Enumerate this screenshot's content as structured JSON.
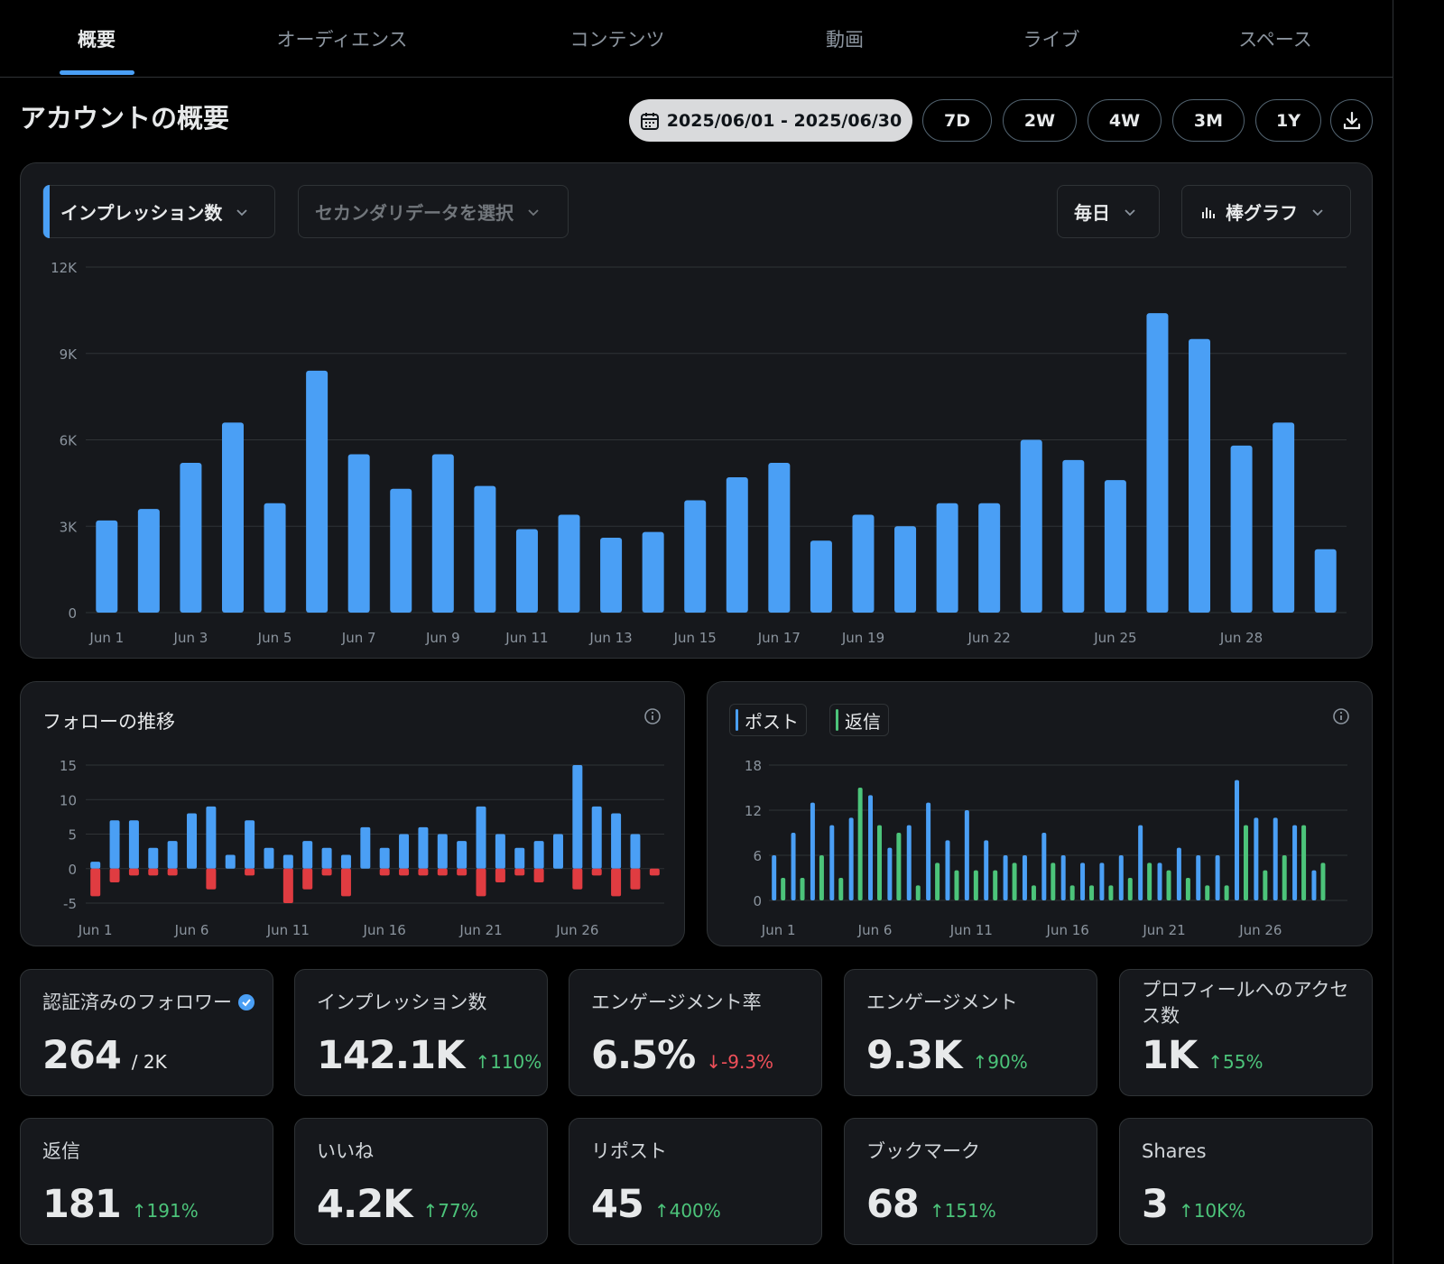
{
  "tabs": [
    {
      "label": "概要",
      "active": true
    },
    {
      "label": "オーディエンス",
      "active": false
    },
    {
      "label": "コンテンツ",
      "active": false
    },
    {
      "label": "動画",
      "active": false
    },
    {
      "label": "ライブ",
      "active": false
    },
    {
      "label": "スペース",
      "active": false
    }
  ],
  "header": {
    "title": "アカウントの概要",
    "date_range": "2025/06/01 - 2025/06/30",
    "ranges": [
      "7D",
      "2W",
      "4W",
      "3M",
      "1Y"
    ]
  },
  "main_chart": {
    "primary_metric": "インプレッション数",
    "secondary_placeholder": "セカンダリデータを選択",
    "interval": "毎日",
    "chart_type_label": "棒グラフ"
  },
  "follow_panel": {
    "title": "フォローの推移"
  },
  "post_panel": {
    "legend": [
      "ポスト",
      "返信"
    ]
  },
  "colors": {
    "blue": "#4a9ff5",
    "red": "#e03c41",
    "green": "#4cc47a",
    "panel": "#16181c",
    "accent": "#4a9ff5"
  },
  "chart_data": [
    {
      "type": "bar",
      "x": [
        "Jun 1",
        "Jun 2",
        "Jun 3",
        "Jun 4",
        "Jun 5",
        "Jun 6",
        "Jun 7",
        "Jun 8",
        "Jun 9",
        "Jun 10",
        "Jun 11",
        "Jun 12",
        "Jun 13",
        "Jun 14",
        "Jun 15",
        "Jun 16",
        "Jun 17",
        "Jun 18",
        "Jun 19",
        "Jun 20",
        "Jun 21",
        "Jun 22",
        "Jun 23",
        "Jun 24",
        "Jun 25",
        "Jun 26",
        "Jun 27",
        "Jun 28",
        "Jun 29",
        "Jun 30"
      ],
      "tick_labels": [
        "Jun 1",
        "Jun 3",
        "Jun 5",
        "Jun 7",
        "Jun 9",
        "Jun 11",
        "Jun 13",
        "Jun 15",
        "Jun 17",
        "Jun 19",
        "Jun 22",
        "Jun 25",
        "Jun 28"
      ],
      "series": [
        {
          "values": [
            3200,
            3600,
            5200,
            6600,
            3800,
            8400,
            5500,
            4300,
            5500,
            4400,
            2900,
            3400,
            2600,
            2800,
            3900,
            4700,
            5200,
            2500,
            3400,
            3000,
            3800,
            3800,
            6000,
            5300,
            4600,
            10400,
            9500,
            5800,
            6600,
            2200
          ]
        }
      ],
      "y_ticks": [
        "0",
        "3K",
        "6K",
        "9K",
        "12K"
      ],
      "ylim": [
        0,
        12000
      ],
      "grid": true
    },
    {
      "type": "bar",
      "x": [
        "Jun 1",
        "Jun 2",
        "Jun 3",
        "Jun 4",
        "Jun 5",
        "Jun 6",
        "Jun 7",
        "Jun 8",
        "Jun 9",
        "Jun 10",
        "Jun 11",
        "Jun 12",
        "Jun 13",
        "Jun 14",
        "Jun 15",
        "Jun 16",
        "Jun 17",
        "Jun 18",
        "Jun 19",
        "Jun 20",
        "Jun 21",
        "Jun 22",
        "Jun 23",
        "Jun 24",
        "Jun 25",
        "Jun 26",
        "Jun 27",
        "Jun 28",
        "Jun 29",
        "Jun 30"
      ],
      "tick_labels": [
        "Jun 1",
        "Jun 6",
        "Jun 11",
        "Jun 16",
        "Jun 21",
        "Jun 26"
      ],
      "series": [
        {
          "values": [
            1,
            7,
            7,
            3,
            4,
            8,
            9,
            2,
            7,
            3,
            2,
            4,
            3,
            2,
            6,
            3,
            5,
            6,
            5,
            4,
            9,
            5,
            3,
            4,
            5,
            15,
            9,
            8,
            5,
            0
          ]
        },
        {
          "values": [
            -4,
            -2,
            -1,
            -1,
            -1,
            0,
            -3,
            0,
            -1,
            0,
            -5,
            -3,
            -1,
            -4,
            0,
            -1,
            -1,
            -1,
            -1,
            -1,
            -4,
            -2,
            -1,
            -2,
            0,
            -3,
            -1,
            -4,
            -3,
            -1
          ]
        }
      ],
      "y_ticks": [
        "-5",
        "0",
        "5",
        "10",
        "15"
      ],
      "ylim": [
        -5,
        15
      ],
      "grid": true
    },
    {
      "type": "bar",
      "x": [
        "Jun 1",
        "Jun 2",
        "Jun 3",
        "Jun 4",
        "Jun 5",
        "Jun 6",
        "Jun 7",
        "Jun 8",
        "Jun 9",
        "Jun 10",
        "Jun 11",
        "Jun 12",
        "Jun 13",
        "Jun 14",
        "Jun 15",
        "Jun 16",
        "Jun 17",
        "Jun 18",
        "Jun 19",
        "Jun 20",
        "Jun 21",
        "Jun 22",
        "Jun 23",
        "Jun 24",
        "Jun 25",
        "Jun 26",
        "Jun 27",
        "Jun 28",
        "Jun 29",
        "Jun 30"
      ],
      "tick_labels": [
        "Jun 1",
        "Jun 6",
        "Jun 11",
        "Jun 16",
        "Jun 21",
        "Jun 26"
      ],
      "series": [
        {
          "name": "ポスト",
          "values": [
            6,
            9,
            13,
            10,
            11,
            14,
            7,
            10,
            13,
            8,
            12,
            8,
            6,
            6,
            9,
            6,
            5,
            5,
            6,
            10,
            5,
            7,
            6,
            6,
            16,
            11,
            11,
            10,
            4,
            0
          ]
        },
        {
          "name": "返信",
          "values": [
            3,
            3,
            6,
            3,
            15,
            10,
            9,
            2,
            5,
            4,
            4,
            4,
            5,
            2,
            5,
            2,
            2,
            2,
            3,
            5,
            4,
            3,
            2,
            2,
            10,
            4,
            6,
            10,
            5,
            0
          ]
        }
      ],
      "y_ticks": [
        "0",
        "6",
        "12",
        "18"
      ],
      "ylim": [
        0,
        18
      ],
      "grid": true
    }
  ],
  "stats": [
    {
      "label": "認証済みのフォロワー",
      "value": "264",
      "suffix": "/ 2K",
      "verified": true
    },
    {
      "label": "インプレッション数",
      "value": "142.1K",
      "change": "110%",
      "dir": "up"
    },
    {
      "label": "エンゲージメント率",
      "value": "6.5%",
      "change": "-9.3%",
      "dir": "down"
    },
    {
      "label": "エンゲージメント",
      "value": "9.3K",
      "change": "90%",
      "dir": "up"
    },
    {
      "label": "プロフィールへのアクセス数",
      "value": "1K",
      "change": "55%",
      "dir": "up"
    },
    {
      "label": "返信",
      "value": "181",
      "change": "191%",
      "dir": "up"
    },
    {
      "label": "いいね",
      "value": "4.2K",
      "change": "77%",
      "dir": "up"
    },
    {
      "label": "リポスト",
      "value": "45",
      "change": "400%",
      "dir": "up"
    },
    {
      "label": "ブックマーク",
      "value": "68",
      "change": "151%",
      "dir": "up"
    },
    {
      "label": "Shares",
      "value": "3",
      "change": "10K%",
      "dir": "up"
    }
  ]
}
